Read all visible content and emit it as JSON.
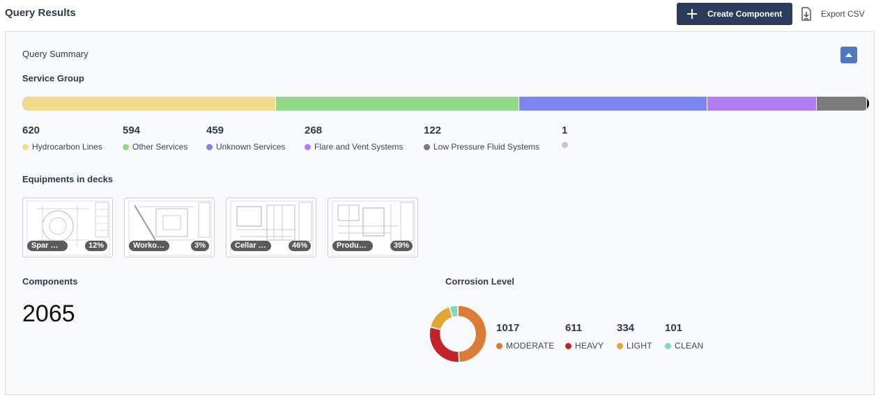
{
  "header": {
    "title": "Query Results",
    "create_label": "Create Component",
    "export_label": "Export CSV"
  },
  "summary": {
    "title": "Query Summary",
    "service_group": {
      "title": "Service Group",
      "items": [
        {
          "value": "620",
          "label": "Hydrocarbon Lines",
          "color": "#f1db8c"
        },
        {
          "value": "594",
          "label": "Other Services",
          "color": "#93d98a"
        },
        {
          "value": "459",
          "label": "Unknown Services",
          "color": "#7b86f0"
        },
        {
          "value": "268",
          "label": "Flare and Vent Systems",
          "color": "#b07ef0"
        },
        {
          "value": "122",
          "label": "Low Pressure Fluid Systems",
          "color": "#7b7b7b"
        },
        {
          "value": "1",
          "label": "",
          "color": "#c8c8c8"
        }
      ]
    },
    "decks": {
      "title": "Equipments in decks",
      "items": [
        {
          "name": "Spar …",
          "percent": "12%"
        },
        {
          "name": "Worko…",
          "percent": "3%"
        },
        {
          "name": "Cellar …",
          "percent": "46%"
        },
        {
          "name": "Produ…",
          "percent": "39%"
        }
      ]
    },
    "components": {
      "title": "Components",
      "value": "2065"
    },
    "corrosion": {
      "title": "Corrosion Level",
      "items": [
        {
          "value": "1017",
          "label": "MODERATE",
          "color": "#dc7b35"
        },
        {
          "value": "611",
          "label": "HEAVY",
          "color": "#c2232b"
        },
        {
          "value": "334",
          "label": "LIGHT",
          "color": "#e2a635"
        },
        {
          "value": "101",
          "label": "CLEAN",
          "color": "#80d8c0"
        }
      ]
    }
  }
}
